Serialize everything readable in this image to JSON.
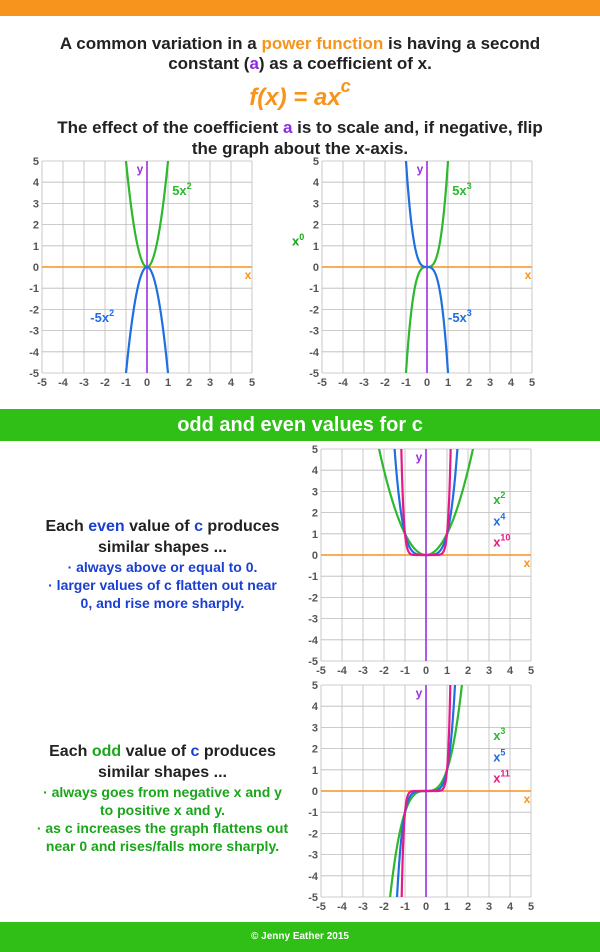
{
  "header": {
    "intro_1": "A common variation in a ",
    "intro_kw": "power function",
    "intro_2": " is having a second",
    "intro_3": "constant (",
    "intro_a": "a",
    "intro_4": ") as a coefficient of x.",
    "formula_base": "f(x) = ax",
    "formula_exp": "c",
    "effect_1": "The effect of the coefficient ",
    "effect_a": "a",
    "effect_2": " is to scale and, if negative, flip",
    "effect_3": "the graph about the x-axis.",
    "mid_label_base": "x",
    "mid_label_exp": "0"
  },
  "section_title": "odd and even values for c",
  "even_text": {
    "l1a": "Each ",
    "l1b": "even",
    "l1c": " value of ",
    "l1d": "c",
    "l1e": " produces",
    "l2": "similar shapes ...",
    "b1": "· always above or equal to 0.",
    "b2": "· larger values of c flatten out near",
    "b3": "0, and rise more sharply."
  },
  "odd_text": {
    "l1a": "Each ",
    "l1b": "odd",
    "l1c": " value of ",
    "l1d": "c",
    "l1e": " produces",
    "l2": "similar shapes ...",
    "b1": "· always goes from negative x and y",
    "b2": "to positive x and y.",
    "b3": "· as c increases the graph flattens out",
    "b4": "near 0 and rises/falls more sharply."
  },
  "footer": "© Jenny Eather 2015",
  "colors": {
    "orange": "#f7941d",
    "green": "#2db82d",
    "blue": "#1f6fe0",
    "magenta": "#e6198a",
    "purple": "#9b30e0",
    "grid": "#bbbbbb"
  },
  "chart_data": [
    {
      "type": "line",
      "xlim": [
        -5,
        5
      ],
      "ylim": [
        -5,
        5
      ],
      "xticks": [
        "-5",
        "-4",
        "-3",
        "-2",
        "-1",
        "0",
        "1",
        "2",
        "3",
        "4",
        "5"
      ],
      "yticks": [
        "5",
        "4",
        "3",
        "2",
        "1",
        "0",
        "-1",
        "-2",
        "-3",
        "-4",
        "-5"
      ],
      "xlabel": "x",
      "ylabel": "y",
      "grid": true,
      "series": [
        {
          "base": "5x",
          "exp": "2",
          "coef": 5,
          "power": 2,
          "color": "green",
          "label_pos": [
            1.2,
            3.4
          ]
        },
        {
          "base": "-5x",
          "exp": "2",
          "coef": -5,
          "power": 2,
          "color": "blue",
          "label_pos": [
            -2.7,
            -2.6
          ]
        }
      ]
    },
    {
      "type": "line",
      "xlim": [
        -5,
        5
      ],
      "ylim": [
        -5,
        5
      ],
      "xticks": [
        "-5",
        "-4",
        "-3",
        "-2",
        "-1",
        "0",
        "1",
        "2",
        "3",
        "4",
        "5"
      ],
      "yticks": [
        "5",
        "4",
        "3",
        "2",
        "1",
        "0",
        "-1",
        "-2",
        "-3",
        "-4",
        "-5"
      ],
      "xlabel": "x",
      "ylabel": "y",
      "grid": true,
      "series": [
        {
          "base": "5x",
          "exp": "3",
          "coef": 5,
          "power": 3,
          "color": "green",
          "label_pos": [
            1.2,
            3.4
          ]
        },
        {
          "base": "-5x",
          "exp": "3",
          "coef": -5,
          "power": 3,
          "color": "blue",
          "label_pos": [
            1.0,
            -2.6
          ]
        }
      ]
    },
    {
      "type": "line",
      "xlim": [
        -5,
        5
      ],
      "ylim": [
        -5,
        5
      ],
      "xticks": [
        "-5",
        "-4",
        "-3",
        "-2",
        "-1",
        "0",
        "1",
        "2",
        "3",
        "4",
        "5"
      ],
      "yticks": [
        "5",
        "4",
        "3",
        "2",
        "1",
        "0",
        "-1",
        "-2",
        "-3",
        "-4",
        "-5"
      ],
      "xlabel": "x",
      "ylabel": "y",
      "grid": true,
      "series": [
        {
          "base": "x",
          "exp": "2",
          "coef": 1,
          "power": 2,
          "color": "green",
          "label_pos": [
            3.2,
            2.4
          ]
        },
        {
          "base": "x",
          "exp": "4",
          "coef": 1,
          "power": 4,
          "color": "blue",
          "label_pos": [
            3.2,
            1.4
          ]
        },
        {
          "base": "x",
          "exp": "10",
          "coef": 1,
          "power": 10,
          "color": "magenta",
          "label_pos": [
            3.2,
            0.4
          ]
        }
      ]
    },
    {
      "type": "line",
      "xlim": [
        -5,
        5
      ],
      "ylim": [
        -5,
        5
      ],
      "xticks": [
        "-5",
        "-4",
        "-3",
        "-2",
        "-1",
        "0",
        "1",
        "2",
        "3",
        "4",
        "5"
      ],
      "yticks": [
        "5",
        "4",
        "3",
        "2",
        "1",
        "0",
        "-1",
        "-2",
        "-3",
        "-4",
        "-5"
      ],
      "xlabel": "x",
      "ylabel": "y",
      "grid": true,
      "series": [
        {
          "base": "x",
          "exp": "3",
          "coef": 1,
          "power": 3,
          "color": "green",
          "label_pos": [
            3.2,
            2.4
          ]
        },
        {
          "base": "x",
          "exp": "5",
          "coef": 1,
          "power": 5,
          "color": "blue",
          "label_pos": [
            3.2,
            1.4
          ]
        },
        {
          "base": "x",
          "exp": "11",
          "coef": 1,
          "power": 11,
          "color": "magenta",
          "label_pos": [
            3.2,
            0.4
          ]
        }
      ]
    }
  ]
}
